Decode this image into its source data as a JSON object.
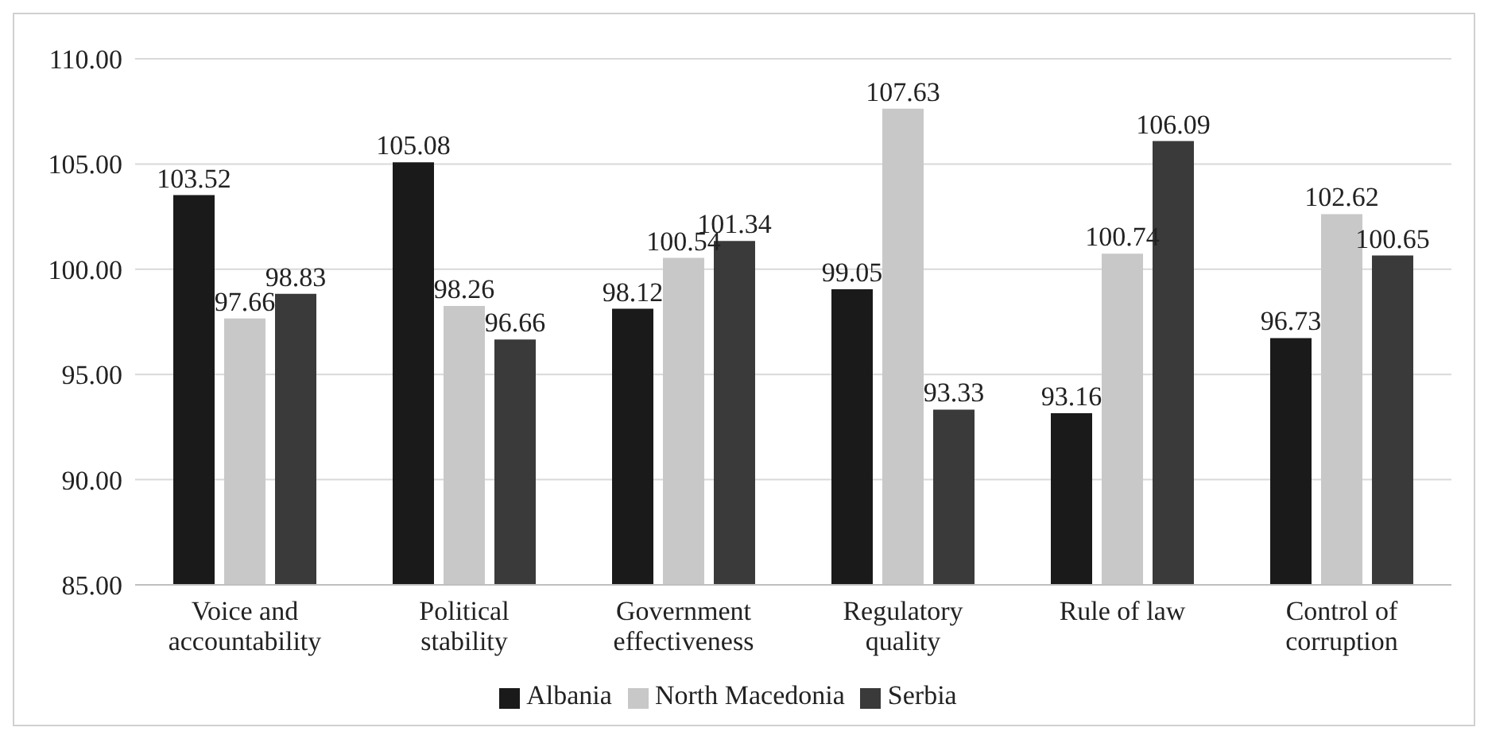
{
  "chart_data": {
    "type": "bar",
    "categories": [
      "Voice and accountability",
      "Political stability",
      "Government effectiveness",
      "Regulatory quality",
      "Rule of law",
      "Control of corruption"
    ],
    "series": [
      {
        "name": "Albania",
        "color": "#1a1a1a",
        "values": [
          103.52,
          105.08,
          98.12,
          99.05,
          93.16,
          96.73
        ]
      },
      {
        "name": "North Macedonia",
        "color": "#c8c8c8",
        "values": [
          97.66,
          98.26,
          100.54,
          107.63,
          100.74,
          102.62
        ]
      },
      {
        "name": "Serbia",
        "color": "#3a3a3a",
        "values": [
          98.83,
          96.66,
          101.34,
          93.33,
          106.09,
          100.65
        ]
      }
    ],
    "ylim": [
      85,
      110
    ],
    "yticks": [
      {
        "value": 85,
        "label": "85.00"
      },
      {
        "value": 90,
        "label": "90.00"
      },
      {
        "value": 95,
        "label": "95.00"
      },
      {
        "value": 100,
        "label": "100.00"
      },
      {
        "value": 105,
        "label": "105.00"
      },
      {
        "value": 110,
        "label": "110.00"
      }
    ],
    "grid": "y",
    "legend": "bottom",
    "data_labels": true
  }
}
